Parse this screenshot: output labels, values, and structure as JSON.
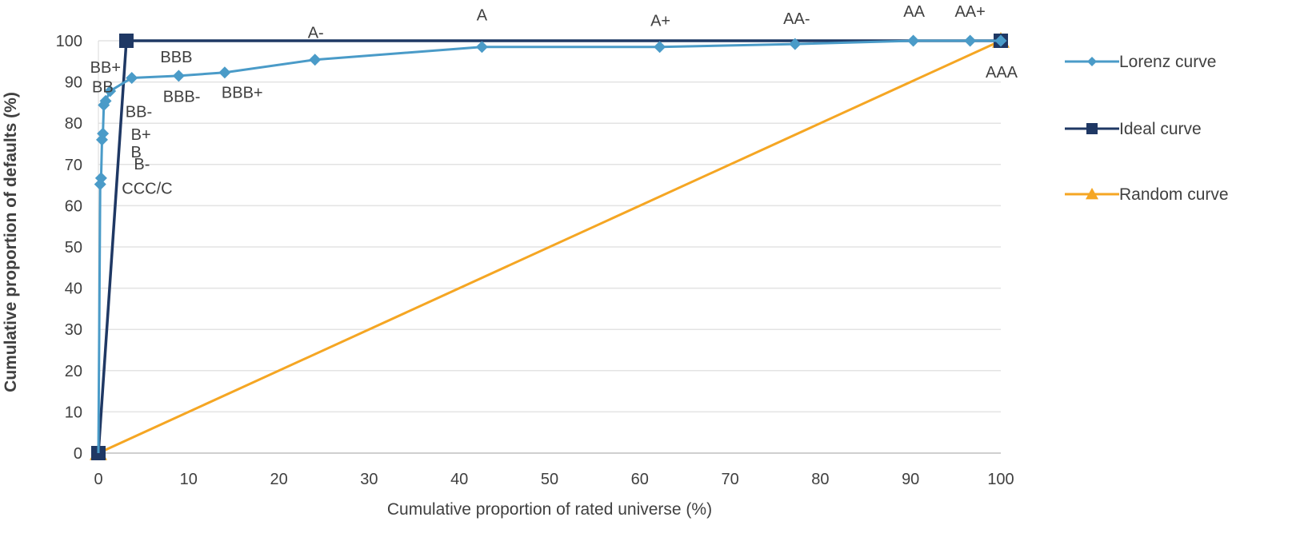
{
  "chart_data": {
    "type": "line",
    "title": "",
    "xlabel": "Cumulative proportion of rated universe (%)",
    "ylabel": "Cumulative proportion of defaults (%)",
    "xlim": [
      0,
      100
    ],
    "ylim": [
      0,
      100
    ],
    "x_ticks": [
      0,
      10,
      20,
      30,
      40,
      50,
      60,
      70,
      80,
      90,
      100
    ],
    "y_ticks": [
      0,
      10,
      20,
      30,
      40,
      50,
      60,
      70,
      80,
      90,
      100
    ],
    "grid": "horizontal",
    "legend_position": "right",
    "series": [
      {
        "name": "Lorenz curve",
        "color": "#4a9bc8",
        "marker": "diamond",
        "points": [
          {
            "x": 0,
            "y": 0,
            "label": ""
          },
          {
            "x": 0.2,
            "y": 65.2,
            "label": "CCC/C"
          },
          {
            "x": 0.3,
            "y": 66.7,
            "label": "B-"
          },
          {
            "x": 0.4,
            "y": 76.0,
            "label": "B"
          },
          {
            "x": 0.5,
            "y": 77.5,
            "label": "B+"
          },
          {
            "x": 0.6,
            "y": 84.4,
            "label": "BB-"
          },
          {
            "x": 0.8,
            "y": 85.4,
            "label": "BB"
          },
          {
            "x": 1.3,
            "y": 87.8,
            "label": "BB+"
          },
          {
            "x": 3.7,
            "y": 91.0,
            "label": "BBB-"
          },
          {
            "x": 8.9,
            "y": 91.5,
            "label": "BBB"
          },
          {
            "x": 14.0,
            "y": 92.3,
            "label": "BBB+"
          },
          {
            "x": 24.0,
            "y": 95.4,
            "label": "A-"
          },
          {
            "x": 42.5,
            "y": 98.5,
            "label": "A"
          },
          {
            "x": 62.2,
            "y": 98.5,
            "label": "A+"
          },
          {
            "x": 77.2,
            "y": 99.2,
            "label": "AA-"
          },
          {
            "x": 90.3,
            "y": 100,
            "label": "AA"
          },
          {
            "x": 96.6,
            "y": 100,
            "label": "AA+"
          },
          {
            "x": 100,
            "y": 100,
            "label": "AAA"
          }
        ]
      },
      {
        "name": "Ideal curve",
        "color": "#1f3864",
        "marker": "square",
        "points": [
          {
            "x": 0,
            "y": 0
          },
          {
            "x": 3.1,
            "y": 100
          },
          {
            "x": 100,
            "y": 100
          }
        ]
      },
      {
        "name": "Random curve",
        "color": "#f5a623",
        "marker": "triangle",
        "points": [
          {
            "x": 0,
            "y": 0
          },
          {
            "x": 100,
            "y": 100
          }
        ]
      }
    ]
  }
}
